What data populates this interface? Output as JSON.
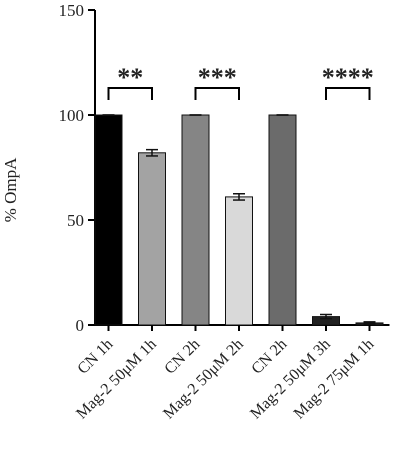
{
  "chart_data": {
    "type": "bar",
    "y_label": "% OmpA",
    "categories": [
      "CN 1h",
      "Mag-2 50μM 1h",
      "CN 2h",
      "Mag-2 50μM 2h",
      "CN 2h",
      "Mag-2 50μM 3h",
      "Mag-2 75μM 1h"
    ],
    "values": [
      100,
      82,
      100,
      61,
      100,
      4,
      1
    ],
    "errors": [
      0,
      1.5,
      0,
      1.5,
      0,
      1,
      0.5
    ],
    "colors": [
      "#000000",
      "#a3a3a3",
      "#858585",
      "#d9d9d9",
      "#6b6b6b",
      "#222222",
      "#222222"
    ],
    "ylim": [
      0,
      150
    ],
    "yticks": [
      0,
      50,
      100,
      150
    ],
    "annotations": [
      "**",
      "***",
      "****"
    ]
  }
}
